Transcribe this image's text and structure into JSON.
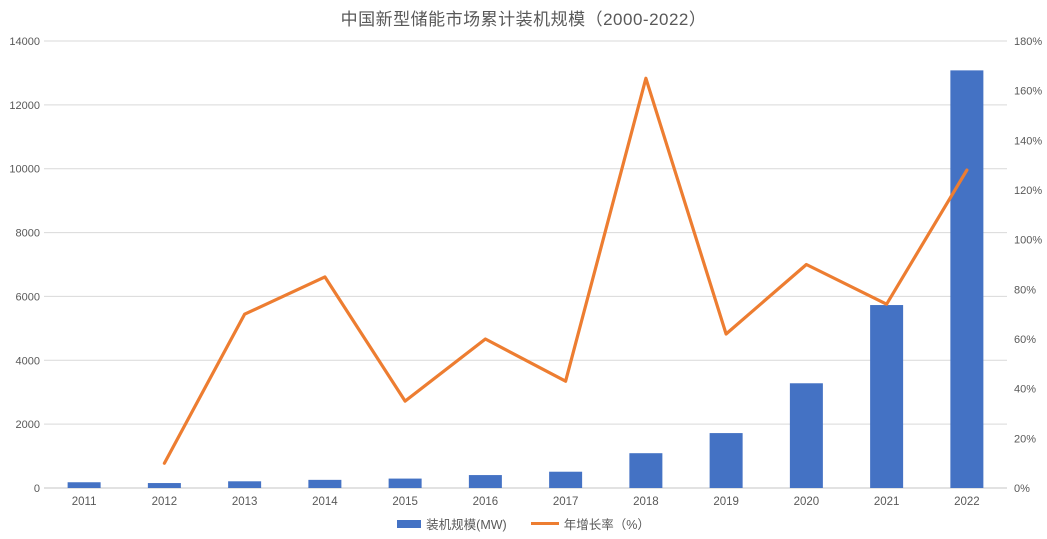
{
  "title": "中国新型储能市场累计装机规模（2000-2022）",
  "colors": {
    "bar": "#4472C4",
    "line": "#ED7D31",
    "text": "#595959",
    "gridline": "#D9D9D9",
    "axis_line": "#C6C6C6",
    "background": "#FFFFFF"
  },
  "legend": {
    "bar_label": "装机规模(MW)",
    "line_label": "年增长率（%）"
  },
  "chart_data": {
    "type": "bar+line combo",
    "title": "中国新型储能市场累计装机规模（2000-2022）",
    "categories": [
      "2011",
      "2012",
      "2013",
      "2014",
      "2015",
      "2016",
      "2017",
      "2018",
      "2019",
      "2020",
      "2021",
      "2022"
    ],
    "series": [
      {
        "name": "装机规模(MW)",
        "type": "bar",
        "axis": "left",
        "color": "#4472C4",
        "values": [
          180,
          155,
          210,
          255,
          295,
          405,
          510,
          1090,
          1720,
          3280,
          5730,
          13080
        ]
      },
      {
        "name": "年增长率（%）",
        "type": "line",
        "axis": "right",
        "color": "#ED7D31",
        "values": [
          null,
          10,
          70,
          85,
          35,
          60,
          43,
          165,
          62,
          90,
          74,
          128
        ]
      }
    ],
    "left_axis": {
      "min": 0,
      "max": 14000,
      "step": 2000,
      "tick_labels": [
        "0",
        "2000",
        "4000",
        "6000",
        "8000",
        "10000",
        "12000",
        "14000"
      ]
    },
    "right_axis": {
      "min": 0,
      "max": 180,
      "step": 20,
      "tick_labels": [
        "0%",
        "20%",
        "40%",
        "60%",
        "80%",
        "100%",
        "120%",
        "140%",
        "160%",
        "180%"
      ]
    },
    "grid": "horizontal only",
    "legend_position": "bottom center"
  }
}
